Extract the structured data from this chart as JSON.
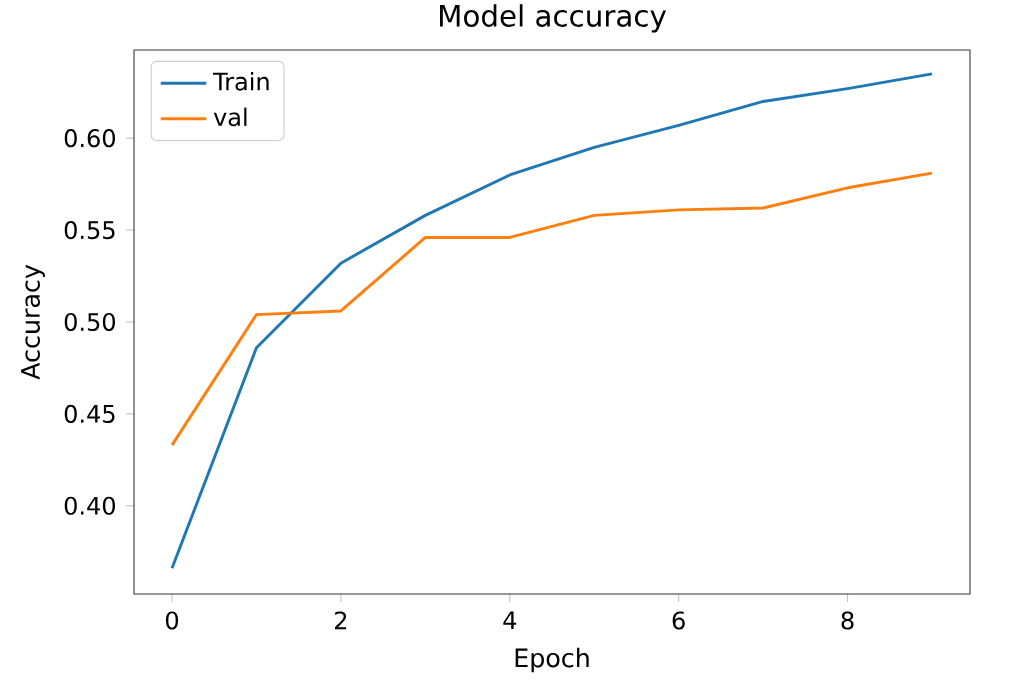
{
  "chart_data": {
    "type": "line",
    "title": "Model accuracy",
    "xlabel": "Epoch",
    "ylabel": "Accuracy",
    "x": [
      0,
      1,
      2,
      3,
      4,
      5,
      6,
      7,
      8,
      9
    ],
    "series": [
      {
        "name": "Train",
        "color": "#1f77b4",
        "values": [
          0.366,
          0.486,
          0.532,
          0.558,
          0.58,
          0.595,
          0.607,
          0.62,
          0.627,
          0.635
        ]
      },
      {
        "name": "val",
        "color": "#ff7f0e",
        "values": [
          0.433,
          0.504,
          0.506,
          0.546,
          0.546,
          0.558,
          0.561,
          0.562,
          0.573,
          0.581
        ]
      }
    ],
    "xlim": [
      -0.45,
      9.45
    ],
    "ylim": [
      0.352,
      0.648
    ],
    "xticks": [
      0,
      2,
      4,
      6,
      8
    ],
    "yticks": [
      {
        "value": 0.4,
        "label": "0.40"
      },
      {
        "value": 0.45,
        "label": "0.45"
      },
      {
        "value": 0.5,
        "label": "0.50"
      },
      {
        "value": 0.55,
        "label": "0.55"
      },
      {
        "value": 0.6,
        "label": "0.60"
      }
    ],
    "legend": "top left",
    "grid": false,
    "marker": "none",
    "line_style": "solid"
  }
}
